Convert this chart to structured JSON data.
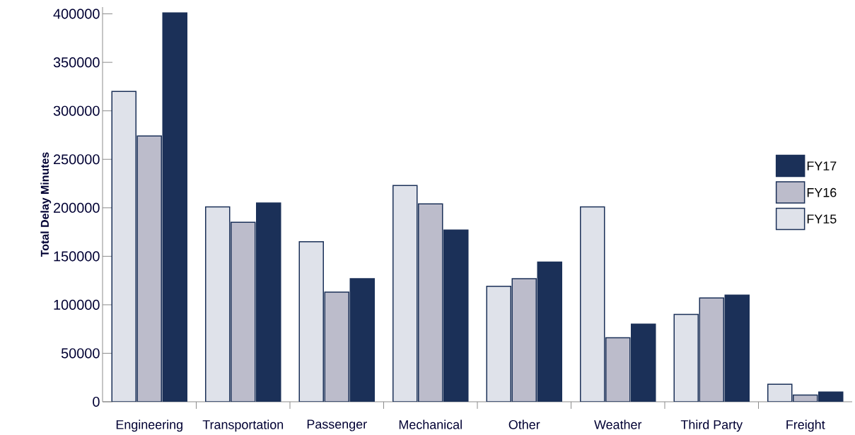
{
  "chart_data": {
    "type": "bar",
    "ylabel": "Total Delay Minutes",
    "categories": [
      "Engineering",
      "Transportation",
      "Passenger",
      "Mechanical",
      "Other",
      "Weather",
      "Third Party",
      "Freight"
    ],
    "series": [
      {
        "name": "FY15",
        "color": "#dfe2ea",
        "values": [
          320000,
          201000,
          165000,
          223000,
          119000,
          201000,
          90000,
          18000
        ]
      },
      {
        "name": "FY16",
        "color": "#bcbccb",
        "values": [
          274000,
          185000,
          113000,
          204000,
          127000,
          66000,
          107000,
          7000
        ]
      },
      {
        "name": "FY17",
        "color": "#1b3058",
        "values": [
          401000,
          205000,
          127000,
          177000,
          144000,
          80000,
          110000,
          10000
        ]
      }
    ],
    "ylim": [
      0,
      407000
    ],
    "yticks": [
      0,
      50000,
      100000,
      150000,
      200000,
      250000,
      300000,
      350000,
      400000
    ],
    "grid": false,
    "legend": "right"
  }
}
